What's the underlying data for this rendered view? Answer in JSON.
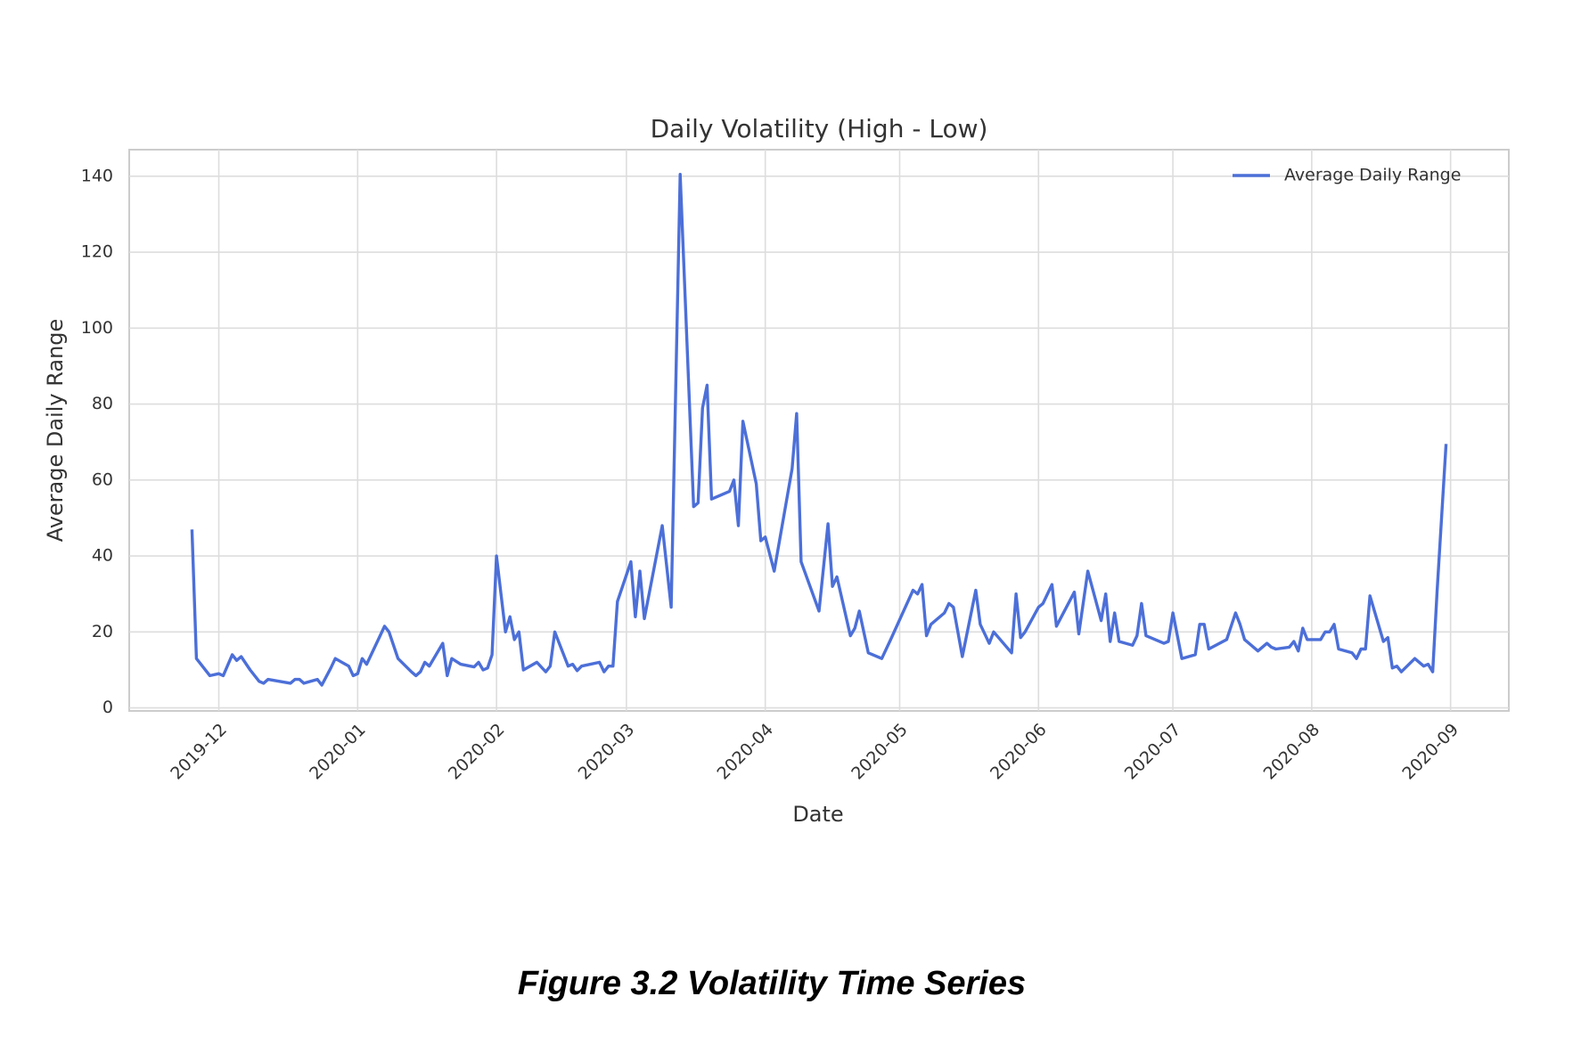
{
  "chart_data": {
    "type": "line",
    "title": "Daily Volatility (High - Low)",
    "x_label": "Date",
    "y_label": "Average Daily Range",
    "caption": "Figure 3.2 Volatility Time Series",
    "legend": "upper right",
    "grid": true,
    "xlim": [
      -20,
      288
    ],
    "ylim": [
      -0.8,
      147
    ],
    "xticks": [
      {
        "value": 0,
        "label": "2019-12"
      },
      {
        "value": 31,
        "label": "2020-01"
      },
      {
        "value": 62,
        "label": "2020-02"
      },
      {
        "value": 91,
        "label": "2020-03"
      },
      {
        "value": 122,
        "label": "2020-04"
      },
      {
        "value": 152,
        "label": "2020-05"
      },
      {
        "value": 183,
        "label": "2020-06"
      },
      {
        "value": 213,
        "label": "2020-07"
      },
      {
        "value": 244,
        "label": "2020-08"
      },
      {
        "value": 275,
        "label": "2020-09"
      }
    ],
    "yticks": [
      0,
      20,
      40,
      60,
      80,
      100,
      120,
      140
    ],
    "series": [
      {
        "name": "Average Daily Range",
        "color": "#4c6fd8",
        "x": [
          -6,
          -5,
          -2,
          0,
          1,
          3,
          4,
          5,
          7,
          9,
          10,
          11,
          16,
          17,
          18,
          19,
          22,
          23,
          25,
          26,
          29,
          30,
          31,
          32,
          33,
          36,
          37,
          38,
          40,
          43,
          44,
          45,
          46,
          47,
          50,
          51,
          52,
          54,
          57,
          58,
          59,
          60,
          61,
          62,
          64,
          65,
          66,
          67,
          68,
          71,
          73,
          74,
          75,
          78,
          79,
          80,
          81,
          85,
          86,
          87,
          88,
          89,
          92,
          93,
          94,
          95,
          99,
          101,
          103,
          106,
          107,
          108,
          109,
          110,
          114,
          115,
          116,
          117,
          120,
          121,
          122,
          124,
          128,
          129,
          130,
          134,
          136,
          137,
          138,
          141,
          142,
          143,
          145,
          148,
          150,
          155,
          156,
          157,
          158,
          159,
          162,
          163,
          164,
          166,
          169,
          170,
          172,
          173,
          177,
          178,
          179,
          180,
          183,
          184,
          186,
          187,
          191,
          192,
          194,
          197,
          198,
          199,
          200,
          201,
          204,
          205,
          206,
          207,
          211,
          212,
          213,
          215,
          218,
          219,
          220,
          221,
          225,
          227,
          228,
          229,
          232,
          234,
          235,
          236,
          239,
          240,
          241,
          242,
          243,
          246,
          247,
          248,
          249,
          250,
          253,
          254,
          255,
          256,
          257,
          260,
          261,
          262,
          263,
          264,
          267,
          268,
          269,
          270,
          271,
          272,
          274
        ],
        "values": [
          47,
          13,
          8.5,
          9,
          8.5,
          14,
          12.5,
          13.5,
          10,
          7,
          6.5,
          7.5,
          6.5,
          7.5,
          7.5,
          6.5,
          7.5,
          6,
          10.5,
          13,
          11,
          8.5,
          9,
          13,
          11.5,
          19,
          21.5,
          20,
          13,
          9.5,
          8.5,
          9.5,
          12,
          11,
          17,
          8.5,
          13,
          11.5,
          10.8,
          12,
          10,
          10.5,
          14,
          40,
          20,
          24,
          18,
          20,
          10,
          12,
          9.5,
          11,
          20,
          11,
          11.5,
          9.8,
          11,
          12,
          9.5,
          11,
          11,
          28,
          38.5,
          24,
          36,
          23.5,
          48,
          26.5,
          140.5,
          53,
          54,
          79,
          85,
          55,
          57,
          60,
          48,
          75.5,
          59,
          44,
          45,
          36,
          63,
          77.5,
          38.5,
          25.5,
          48.5,
          32,
          34.5,
          19,
          21,
          25.5,
          14.5,
          13,
          18,
          31,
          30,
          32.5,
          19,
          22,
          25,
          27.5,
          26.5,
          13.5,
          31,
          22,
          17,
          20,
          14.5,
          30,
          18.5,
          20,
          26.5,
          27.5,
          32.5,
          21.5,
          30.5,
          19.5,
          36,
          23,
          30,
          17.5,
          25,
          17.5,
          16.5,
          19,
          27.5,
          19,
          17,
          17.5,
          25,
          13,
          14,
          22,
          22,
          15.5,
          18,
          25,
          22,
          18,
          15,
          17,
          16,
          15.5,
          16,
          17.5,
          15,
          21,
          18,
          18,
          20,
          20,
          22,
          15.5,
          14.5,
          13,
          15.5,
          15.5,
          29.5,
          17.5,
          18.5,
          10.5,
          11,
          9.5,
          13,
          12,
          11,
          11.5,
          9.5,
          31,
          69.5
        ]
      }
    ]
  }
}
